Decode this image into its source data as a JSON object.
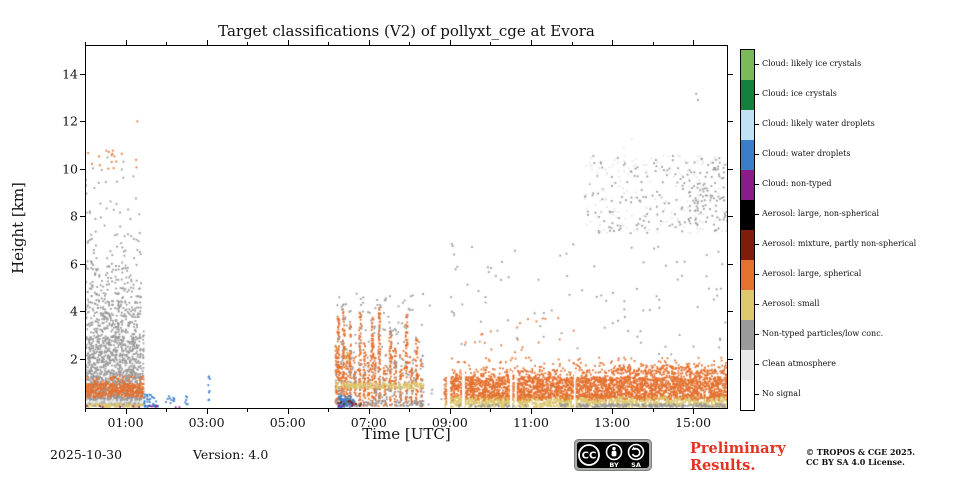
{
  "title": "Target classifications (V2) of pollyxt_cge at Evora",
  "xlabel": "Time [UTC]",
  "ylabel": "Height [km]",
  "footer": {
    "date": "2025-10-30",
    "version": "Version: 4.0",
    "preliminary_line1": "Preliminary",
    "preliminary_line2": "Results.",
    "copyright_line1": "© TROPOS & CGE 2025.",
    "copyright_line2": "CC BY SA 4.0 License.",
    "cc_badge": {
      "cc": "CC",
      "by": "BY",
      "sa": "SA"
    }
  },
  "legend": {
    "items": [
      {
        "key": "ice_likely",
        "label": "Cloud: likely ice crystals",
        "color": "#7cba59"
      },
      {
        "key": "ice",
        "label": "Cloud: ice crystals",
        "color": "#12813e"
      },
      {
        "key": "water_likely",
        "label": "Cloud: likely water droplets",
        "color": "#c1e2f6"
      },
      {
        "key": "water",
        "label": "Cloud: water droplets",
        "color": "#3a7dc9"
      },
      {
        "key": "cloud_nt",
        "label": "Cloud: non-typed",
        "color": "#8a1b8a"
      },
      {
        "key": "aero_large_ns",
        "label": "Aerosol: large, non-spherical",
        "color": "#000000"
      },
      {
        "key": "aero_mix",
        "label": "Aerosol: mixture, partly non-spherical",
        "color": "#7f1c0b"
      },
      {
        "key": "aero_large_s",
        "label": "Aerosol: large, spherical",
        "color": "#e5712f"
      },
      {
        "key": "aero_small",
        "label": "Aerosol: small",
        "color": "#dcc76d"
      },
      {
        "key": "nontyped",
        "label": "Non-typed particles/low conc.",
        "color": "#9a9a9a"
      },
      {
        "key": "clean",
        "label": "Clean atmosphere",
        "color": "#e8e8e8"
      },
      {
        "key": "nosignal",
        "label": "No signal",
        "color": "#ffffff"
      }
    ]
  },
  "chart_data": {
    "type": "heatmap",
    "title": "Target classifications (V2) of pollyxt_cge at Evora",
    "xlabel": "Time [UTC]",
    "ylabel": "Height [km]",
    "xlim_hours": [
      0,
      15.86
    ],
    "ylim_km": [
      -0.1,
      15.2
    ],
    "grid": false,
    "legend_position": "right-colorbar",
    "xticks": [
      {
        "t": 1,
        "label": "01:00"
      },
      {
        "t": 3,
        "label": "03:00"
      },
      {
        "t": 5,
        "label": "05:00"
      },
      {
        "t": 7,
        "label": "07:00"
      },
      {
        "t": 9,
        "label": "09:00"
      },
      {
        "t": 11,
        "label": "11:00"
      },
      {
        "t": 13,
        "label": "13:00"
      },
      {
        "t": 15,
        "label": "15:00"
      }
    ],
    "xticks_minor": [
      0,
      2,
      4,
      6,
      8,
      10,
      12,
      14
    ],
    "yticks": [
      {
        "h": 2,
        "label": "2"
      },
      {
        "h": 4,
        "label": "4"
      },
      {
        "h": 6,
        "label": "6"
      },
      {
        "h": 8,
        "label": "8"
      },
      {
        "h": 10,
        "label": "10"
      },
      {
        "h": 12,
        "label": "12"
      },
      {
        "h": 14,
        "label": "14"
      }
    ],
    "regions": [
      {
        "t0": 0,
        "t1": 1.37,
        "h0": 0.06,
        "h1": 1.5,
        "cat": "nontyped",
        "d": 0.8
      },
      {
        "t0": 0,
        "t1": 1.37,
        "h0": 1.5,
        "h1": 3.0,
        "cat": "nontyped",
        "d": 0.5
      },
      {
        "t0": 0,
        "t1": 1.37,
        "h0": 3.0,
        "h1": 4.5,
        "cat": "nontyped",
        "d": 0.26
      },
      {
        "t0": 0,
        "t1": 1.37,
        "h0": 4.5,
        "h1": 6.0,
        "cat": "nontyped",
        "d": 0.12
      },
      {
        "t0": 0,
        "t1": 1.37,
        "h0": 6.0,
        "h1": 7.5,
        "cat": "nontyped",
        "d": 0.04
      },
      {
        "t0": 0,
        "t1": 1.37,
        "h0": 7.5,
        "h1": 10.6,
        "cat": "nontyped",
        "d": 0.016
      },
      {
        "t0": 1.4,
        "t1": 1.43,
        "h0": 0.06,
        "h1": 3.2,
        "cat": "nontyped",
        "d": 0.55
      },
      {
        "t0": 0,
        "t1": 1.37,
        "h0": 0.3,
        "h1": 0.42,
        "cat": "nontyped",
        "d": 0.7
      },
      {
        "t0": 0,
        "t1": 1.43,
        "h0": 1.02,
        "h1": 1.35,
        "cat": "aero_large_s",
        "d": 0.2
      },
      {
        "t0": 0,
        "t1": 1.43,
        "h0": 0.42,
        "h1": 1.02,
        "cat": "aero_large_s",
        "d": 0.93
      },
      {
        "t0": 0,
        "t1": 1.43,
        "h0": 0.18,
        "h1": 0.32,
        "cat": "clean",
        "d": 0.55
      },
      {
        "t0": 0,
        "t1": 1.43,
        "h0": 0.0,
        "h1": 0.16,
        "cat": "aero_small",
        "d": 0.9
      },
      {
        "t0": 0,
        "t1": 1.43,
        "h0": 0.0,
        "h1": 0.08,
        "cat": "cloud_nt",
        "d": 0.12
      },
      {
        "t0": 0.05,
        "t1": 1.25,
        "h0": 9.9,
        "h1": 10.8,
        "cat": "aero_large_s",
        "d": 0.035
      },
      {
        "t0": 1.22,
        "t1": 1.33,
        "h0": 11.9,
        "h1": 12.15,
        "cat": "aero_large_s",
        "d": 0.06
      },
      {
        "t0": 1.44,
        "t1": 1.6,
        "h0": 0.0,
        "h1": 0.58,
        "cat": "water",
        "d": 0.55
      },
      {
        "t0": 1.62,
        "t1": 1.78,
        "h0": 0.0,
        "h1": 0.45,
        "cat": "water",
        "d": 0.4
      },
      {
        "t0": 1.44,
        "t1": 1.8,
        "h0": 0.0,
        "h1": 0.1,
        "cat": "cloud_nt",
        "d": 0.25
      },
      {
        "t0": 1.95,
        "t1": 2.18,
        "h0": 0.05,
        "h1": 0.5,
        "cat": "water",
        "d": 0.22
      },
      {
        "t0": 2.45,
        "t1": 2.56,
        "h0": 0.05,
        "h1": 0.55,
        "cat": "water",
        "d": 0.25
      },
      {
        "t0": 2.0,
        "t1": 2.6,
        "h0": 0.0,
        "h1": 0.06,
        "cat": "cloud_nt",
        "d": 0.12
      },
      {
        "t0": 3.0,
        "t1": 3.06,
        "h0": 0.1,
        "h1": 1.5,
        "cat": "water",
        "d": 0.22
      },
      {
        "t0": 6.155,
        "t1": 6.205,
        "h0": 0.05,
        "h1": 2.6,
        "cat": "aero_large_s",
        "d": 0.72
      },
      {
        "t0": 6.205,
        "t1": 6.255,
        "h0": 0.05,
        "h1": 3.9,
        "cat": "aero_large_s",
        "d": 0.72
      },
      {
        "t0": 6.265,
        "t1": 6.315,
        "h0": 0.05,
        "h1": 1.8,
        "cat": "aero_large_s",
        "d": 0.72
      },
      {
        "t0": 6.335,
        "t1": 6.385,
        "h0": 0.05,
        "h1": 4.15,
        "cat": "aero_large_s",
        "d": 0.72
      },
      {
        "t0": 6.415,
        "t1": 6.465,
        "h0": 0.05,
        "h1": 2.3,
        "cat": "aero_large_s",
        "d": 0.72
      },
      {
        "t0": 6.495,
        "t1": 6.545,
        "h0": 0.05,
        "h1": 3.5,
        "cat": "aero_large_s",
        "d": 0.72
      },
      {
        "t0": 6.605,
        "t1": 6.655,
        "h0": 0.05,
        "h1": 1.9,
        "cat": "aero_large_s",
        "d": 0.72
      },
      {
        "t0": 6.735,
        "t1": 6.785,
        "h0": 0.05,
        "h1": 4.0,
        "cat": "aero_large_s",
        "d": 0.72
      },
      {
        "t0": 6.845,
        "t1": 6.895,
        "h0": 0.05,
        "h1": 2.7,
        "cat": "aero_large_s",
        "d": 0.72
      },
      {
        "t0": 6.945,
        "t1": 6.995,
        "h0": 0.05,
        "h1": 1.6,
        "cat": "aero_large_s",
        "d": 0.72
      },
      {
        "t0": 7.045,
        "t1": 7.095,
        "h0": 0.05,
        "h1": 3.8,
        "cat": "aero_large_s",
        "d": 0.72
      },
      {
        "t0": 7.115,
        "t1": 7.165,
        "h0": 0.05,
        "h1": 2.1,
        "cat": "aero_large_s",
        "d": 0.72
      },
      {
        "t0": 7.215,
        "t1": 7.265,
        "h0": 0.05,
        "h1": 4.2,
        "cat": "aero_large_s",
        "d": 0.72
      },
      {
        "t0": 7.345,
        "t1": 7.395,
        "h0": 0.05,
        "h1": 1.8,
        "cat": "aero_large_s",
        "d": 0.72
      },
      {
        "t0": 7.485,
        "t1": 7.535,
        "h0": 0.05,
        "h1": 3.2,
        "cat": "aero_large_s",
        "d": 0.72
      },
      {
        "t0": 7.605,
        "t1": 7.655,
        "h0": 0.05,
        "h1": 2.5,
        "cat": "aero_large_s",
        "d": 0.72
      },
      {
        "t0": 7.735,
        "t1": 7.785,
        "h0": 0.05,
        "h1": 1.6,
        "cat": "aero_large_s",
        "d": 0.72
      },
      {
        "t0": 7.885,
        "t1": 7.935,
        "h0": 0.05,
        "h1": 3.9,
        "cat": "aero_large_s",
        "d": 0.72
      },
      {
        "t0": 8.005,
        "t1": 8.055,
        "h0": 0.05,
        "h1": 1.7,
        "cat": "aero_large_s",
        "d": 0.72
      },
      {
        "t0": 8.135,
        "t1": 8.185,
        "h0": 0.05,
        "h1": 2.9,
        "cat": "aero_large_s",
        "d": 0.72
      },
      {
        "t0": 8.255,
        "t1": 8.305,
        "h0": 0.05,
        "h1": 1.3,
        "cat": "aero_large_s",
        "d": 0.72
      },
      {
        "t0": 6.15,
        "t1": 8.35,
        "h0": 0.05,
        "h1": 0.3,
        "cat": "nontyped",
        "d": 0.45
      },
      {
        "t0": 6.16,
        "t1": 8.33,
        "h0": 0.3,
        "h1": 2.2,
        "cat": "nontyped",
        "d": 0.08
      },
      {
        "t0": 6.16,
        "t1": 8.33,
        "h0": 0.78,
        "h1": 1.04,
        "cat": "aero_small",
        "d": 0.75
      },
      {
        "t0": 6.22,
        "t1": 6.62,
        "h0": 0.0,
        "h1": 0.5,
        "cat": "water",
        "d": 0.8
      },
      {
        "t0": 6.2,
        "t1": 6.8,
        "h0": 0.02,
        "h1": 0.28,
        "cat": "aero_mix",
        "d": 0.18
      },
      {
        "t0": 6.2,
        "t1": 6.7,
        "h0": 0.0,
        "h1": 0.08,
        "cat": "cloud_nt",
        "d": 0.2
      },
      {
        "t0": 6.18,
        "t1": 6.5,
        "h0": 1.9,
        "h1": 2.6,
        "cat": "aero_small",
        "d": 0.06
      },
      {
        "t0": 6.18,
        "t1": 6.45,
        "h0": 2.1,
        "h1": 2.55,
        "cat": "ice_likely",
        "d": 0.04
      },
      {
        "t0": 6.2,
        "t1": 8.35,
        "h0": 2.3,
        "h1": 4.8,
        "cat": "nontyped",
        "d": 0.035
      },
      {
        "t0": 6.3,
        "t1": 8.3,
        "h0": 1.1,
        "h1": 2.4,
        "cat": "aero_large_s",
        "d": 0.06
      },
      {
        "t0": 7.0,
        "t1": 8.5,
        "h0": 4.2,
        "h1": 4.7,
        "cat": "nontyped",
        "d": 0.02
      },
      {
        "t0": 8.4,
        "t1": 9.0,
        "h0": 0.0,
        "h1": 1.0,
        "cat": "nontyped",
        "d": 0.015
      },
      {
        "t0": 8.84,
        "t1": 8.9,
        "h0": 0.05,
        "h1": 1.25,
        "cat": "aero_large_s",
        "d": 0.75
      },
      {
        "t0": 8.84,
        "t1": 8.9,
        "h0": 0.0,
        "h1": 0.3,
        "cat": "aero_small",
        "d": 0.5
      },
      {
        "t0": 9.0,
        "t1": 15.86,
        "h0": 0.38,
        "h1": 1.28,
        "cat": "aero_large_s",
        "d": 0.9
      },
      {
        "t0": 9.0,
        "t1": 15.86,
        "h0": 1.28,
        "h1": 1.6,
        "cat": "aero_large_s",
        "d": 0.28
      },
      {
        "t0": 13.0,
        "t1": 15.86,
        "h0": 1.4,
        "h1": 1.8,
        "cat": "aero_large_s",
        "d": 0.3
      },
      {
        "t0": 9.0,
        "t1": 15.86,
        "h0": 1.6,
        "h1": 2.1,
        "cat": "aero_large_s",
        "d": 0.06
      },
      {
        "t0": 9.0,
        "t1": 15.86,
        "h0": 0.02,
        "h1": 0.44,
        "cat": "aero_small",
        "d": 0.85
      },
      {
        "t0": 9.0,
        "t1": 15.86,
        "h0": 0.3,
        "h1": 0.55,
        "cat": "aero_large_s",
        "d": 0.3
      },
      {
        "t0": 9.2,
        "t1": 11.0,
        "h0": 0.02,
        "h1": 0.14,
        "cat": "nontyped",
        "d": 0.3
      },
      {
        "t0": 11.7,
        "t1": 15.86,
        "h0": 0.02,
        "h1": 0.15,
        "cat": "nontyped",
        "d": 0.85
      },
      {
        "t0": 9.3,
        "t1": 9.37,
        "h0": 0.0,
        "h1": 1.5,
        "cat": "nosignal",
        "mode": "fill"
      },
      {
        "t0": 10.48,
        "t1": 10.54,
        "h0": 0.0,
        "h1": 1.5,
        "cat": "nosignal",
        "mode": "fill"
      },
      {
        "t0": 10.6,
        "t1": 10.65,
        "h0": 0.0,
        "h1": 1.5,
        "cat": "nosignal",
        "mode": "fill"
      },
      {
        "t0": 12.06,
        "t1": 12.1,
        "h0": 0.0,
        "h1": 1.5,
        "cat": "nosignal",
        "mode": "fill"
      },
      {
        "t0": 9.0,
        "t1": 15.86,
        "h0": 2.1,
        "h1": 7.0,
        "cat": "nontyped",
        "d": 0.006
      },
      {
        "t0": 9.3,
        "t1": 12.3,
        "h0": 2.0,
        "h1": 4.0,
        "cat": "aero_large_s",
        "d": 0.008
      },
      {
        "t0": 12.3,
        "t1": 15.86,
        "h0": 7.3,
        "h1": 10.6,
        "cat": "nontyped",
        "d": 0.03
      },
      {
        "t0": 12.3,
        "t1": 15.86,
        "h0": 7.3,
        "h1": 10.6,
        "cat": "clean",
        "d": 0.03
      },
      {
        "t0": 14.6,
        "t1": 15.86,
        "h0": 7.6,
        "h1": 10.3,
        "cat": "nontyped",
        "d": 0.05
      },
      {
        "t0": 13.1,
        "t1": 13.6,
        "h0": 10.2,
        "h1": 11.3,
        "cat": "clean",
        "d": 0.02
      },
      {
        "t0": 14.85,
        "t1": 15.1,
        "h0": 12.9,
        "h1": 13.35,
        "cat": "nontyped",
        "d": 0.03
      }
    ]
  }
}
